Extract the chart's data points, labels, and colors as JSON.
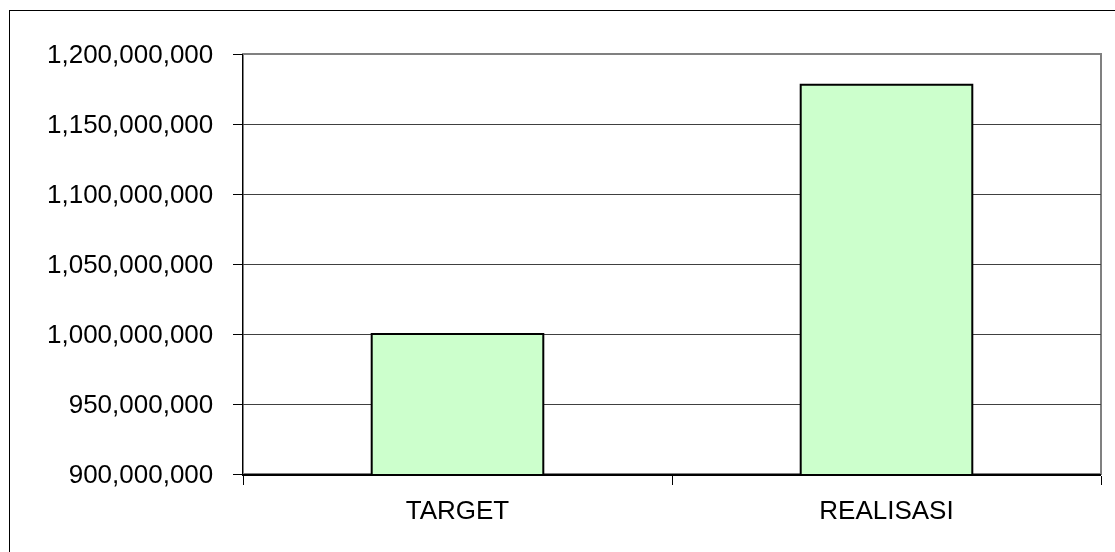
{
  "chart_data": {
    "type": "bar",
    "categories": [
      "TARGET",
      "REALISASI"
    ],
    "values": [
      1000000000,
      1178000000
    ],
    "color": "#ccffcc",
    "ylim": [
      900000000,
      1200000000
    ],
    "yticks": [
      {
        "value": 900000000,
        "label": "900,000,000"
      },
      {
        "value": 950000000,
        "label": "950,000,000"
      },
      {
        "value": 1000000000,
        "label": "1,000,000,000"
      },
      {
        "value": 1050000000,
        "label": "1,050,000,000"
      },
      {
        "value": 1100000000,
        "label": "1,100,000,000"
      },
      {
        "value": 1150000000,
        "label": "1,150,000,000"
      },
      {
        "value": 1200000000,
        "label": "1,200,000,000"
      }
    ],
    "grid": "y"
  }
}
